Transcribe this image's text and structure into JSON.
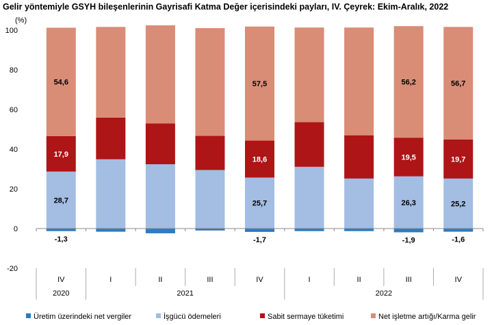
{
  "chart_data": {
    "type": "bar",
    "stacked": true,
    "title": "Gelir yöntemiyle GSYH bileşenlerinin Gayrisafi Katma Değer içerisindeki payları, IV. Çeyrek: Ekim-Aralık, 2022",
    "ylabel": "(%)",
    "ylim": [
      -20,
      100
    ],
    "yticks": [
      -20,
      0,
      20,
      40,
      60,
      80,
      100
    ],
    "categories": [
      "IV",
      "I",
      "II",
      "III",
      "IV",
      "I",
      "II",
      "III",
      "IV"
    ],
    "years": [
      {
        "label": "2020",
        "span": [
          0,
          0
        ]
      },
      {
        "label": "2021",
        "span": [
          1,
          4
        ]
      },
      {
        "label": "2022",
        "span": [
          5,
          8
        ]
      }
    ],
    "legend_position": "bottom",
    "series": [
      {
        "name": "Üretim üzerindeki net vergiler",
        "color": "#2e7bbf",
        "values": [
          -1.3,
          -1.6,
          -2.4,
          -1.0,
          -1.7,
          -1.3,
          -1.3,
          -1.9,
          -1.6
        ],
        "labels": [
          "-1,3",
          null,
          null,
          null,
          "-1,7",
          null,
          null,
          "-1,9",
          "-1,6"
        ]
      },
      {
        "name": "İşgücü ödemeleri",
        "color": "#a3bde3",
        "values": [
          28.7,
          34.9,
          32.4,
          29.5,
          25.7,
          31.1,
          25.2,
          26.3,
          25.2
        ],
        "labels": [
          "28,7",
          null,
          null,
          null,
          "25,7",
          null,
          null,
          "26,3",
          "25,2"
        ]
      },
      {
        "name": "Sabit sermaye tüketimi",
        "color": "#ae1517",
        "values": [
          17.9,
          21.0,
          20.6,
          17.2,
          18.6,
          22.5,
          21.8,
          19.5,
          19.7
        ],
        "labels": [
          "17,9",
          null,
          null,
          null,
          "18,6",
          null,
          null,
          "19,5",
          "19,7"
        ]
      },
      {
        "name": "Net işletme artığı/Karma gelir",
        "color": "#d98c76",
        "values": [
          54.6,
          45.7,
          49.4,
          54.3,
          57.5,
          47.7,
          54.3,
          56.2,
          56.7
        ],
        "labels": [
          "54,6",
          null,
          null,
          null,
          "57,5",
          null,
          null,
          "56,2",
          "56,7"
        ]
      }
    ]
  }
}
